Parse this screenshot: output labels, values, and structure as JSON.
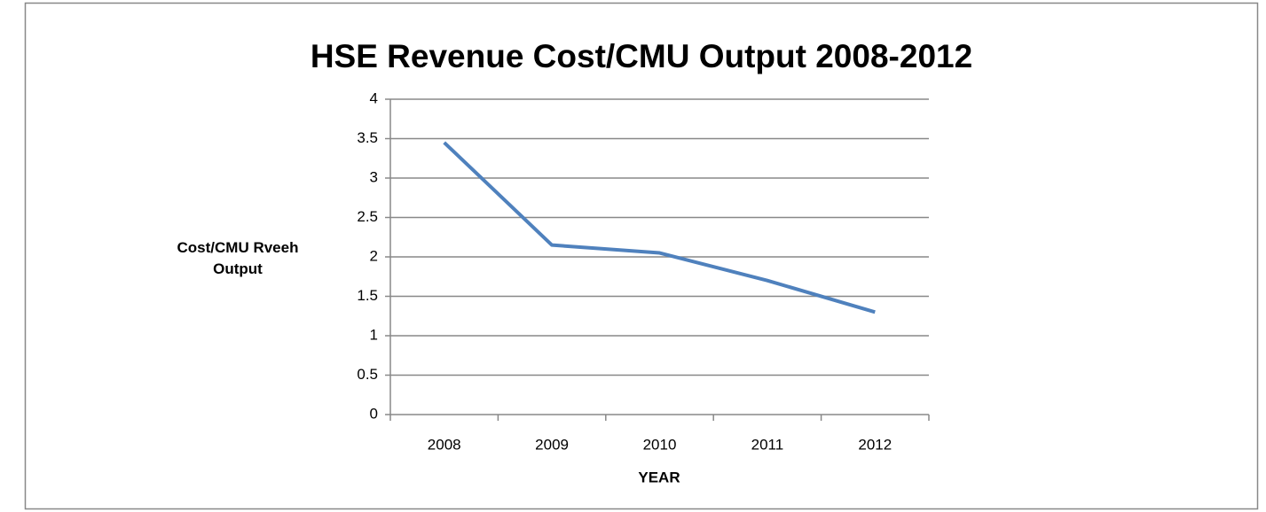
{
  "chart_data": {
    "type": "line",
    "title": "HSE Revenue Cost/CMU Output 2008-2012",
    "x_label": "YEAR",
    "y_label": "Cost/CMU Rveeh Output",
    "categories": [
      "2008",
      "2009",
      "2010",
      "2011",
      "2012"
    ],
    "values": [
      3.45,
      2.15,
      2.05,
      1.7,
      1.3
    ],
    "color": "#4f81bd",
    "ylim": [
      0,
      4
    ],
    "yticks": [
      0,
      0.5,
      1,
      1.5,
      2,
      2.5,
      3,
      3.5,
      4
    ],
    "grid": true
  }
}
